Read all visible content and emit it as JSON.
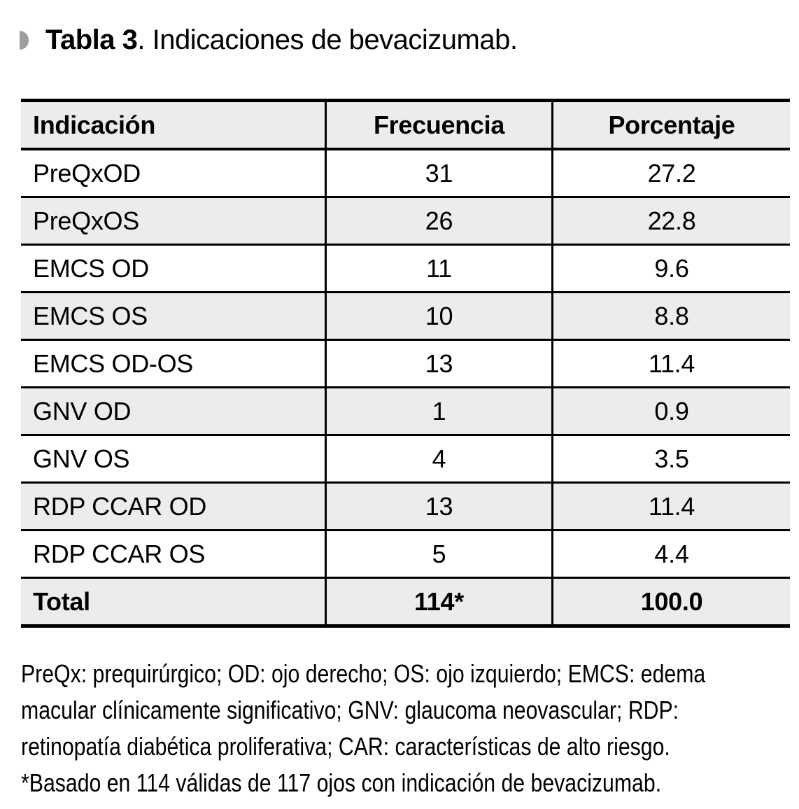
{
  "caption": {
    "bold": "Tabla 3",
    "regular": ". Indicaciones de bevacizumab."
  },
  "table": {
    "columns": [
      "Indicación",
      "Frecuencia",
      "Porcentaje"
    ],
    "rows": [
      [
        "PreQxOD",
        "31",
        "27.2"
      ],
      [
        "PreQxOS",
        "26",
        "22.8"
      ],
      [
        "EMCS OD",
        "11",
        "9.6"
      ],
      [
        "EMCS OS",
        "10",
        "8.8"
      ],
      [
        "EMCS OD-OS",
        "13",
        "11.4"
      ],
      [
        "GNV OD",
        "1",
        "0.9"
      ],
      [
        "GNV OS",
        "4",
        "3.5"
      ],
      [
        "RDP CCAR OD",
        "13",
        "11.4"
      ],
      [
        "RDP CCAR OS",
        "5",
        "4.4"
      ],
      [
        "Total",
        "114*",
        "100.0"
      ]
    ]
  },
  "footnote": {
    "lines": [
      "PreQx: prequirúrgico; OD: ojo derecho; OS: ojo izquierdo; EMCS: edema",
      "macular clínicamente significativo; GNV: glaucoma neovascular; RDP:",
      "retinopatía diabética proliferativa; CAR: características de alto riesgo.",
      "*Basado en 114 válidas de 117 ojos con indicación de bevacizumab."
    ]
  },
  "colors": {
    "header_bg": "#ececec",
    "zebra_bg": "#ececec",
    "border": "#000000",
    "bullet": "#9d9d9d",
    "page_bg": "#ffffff"
  }
}
